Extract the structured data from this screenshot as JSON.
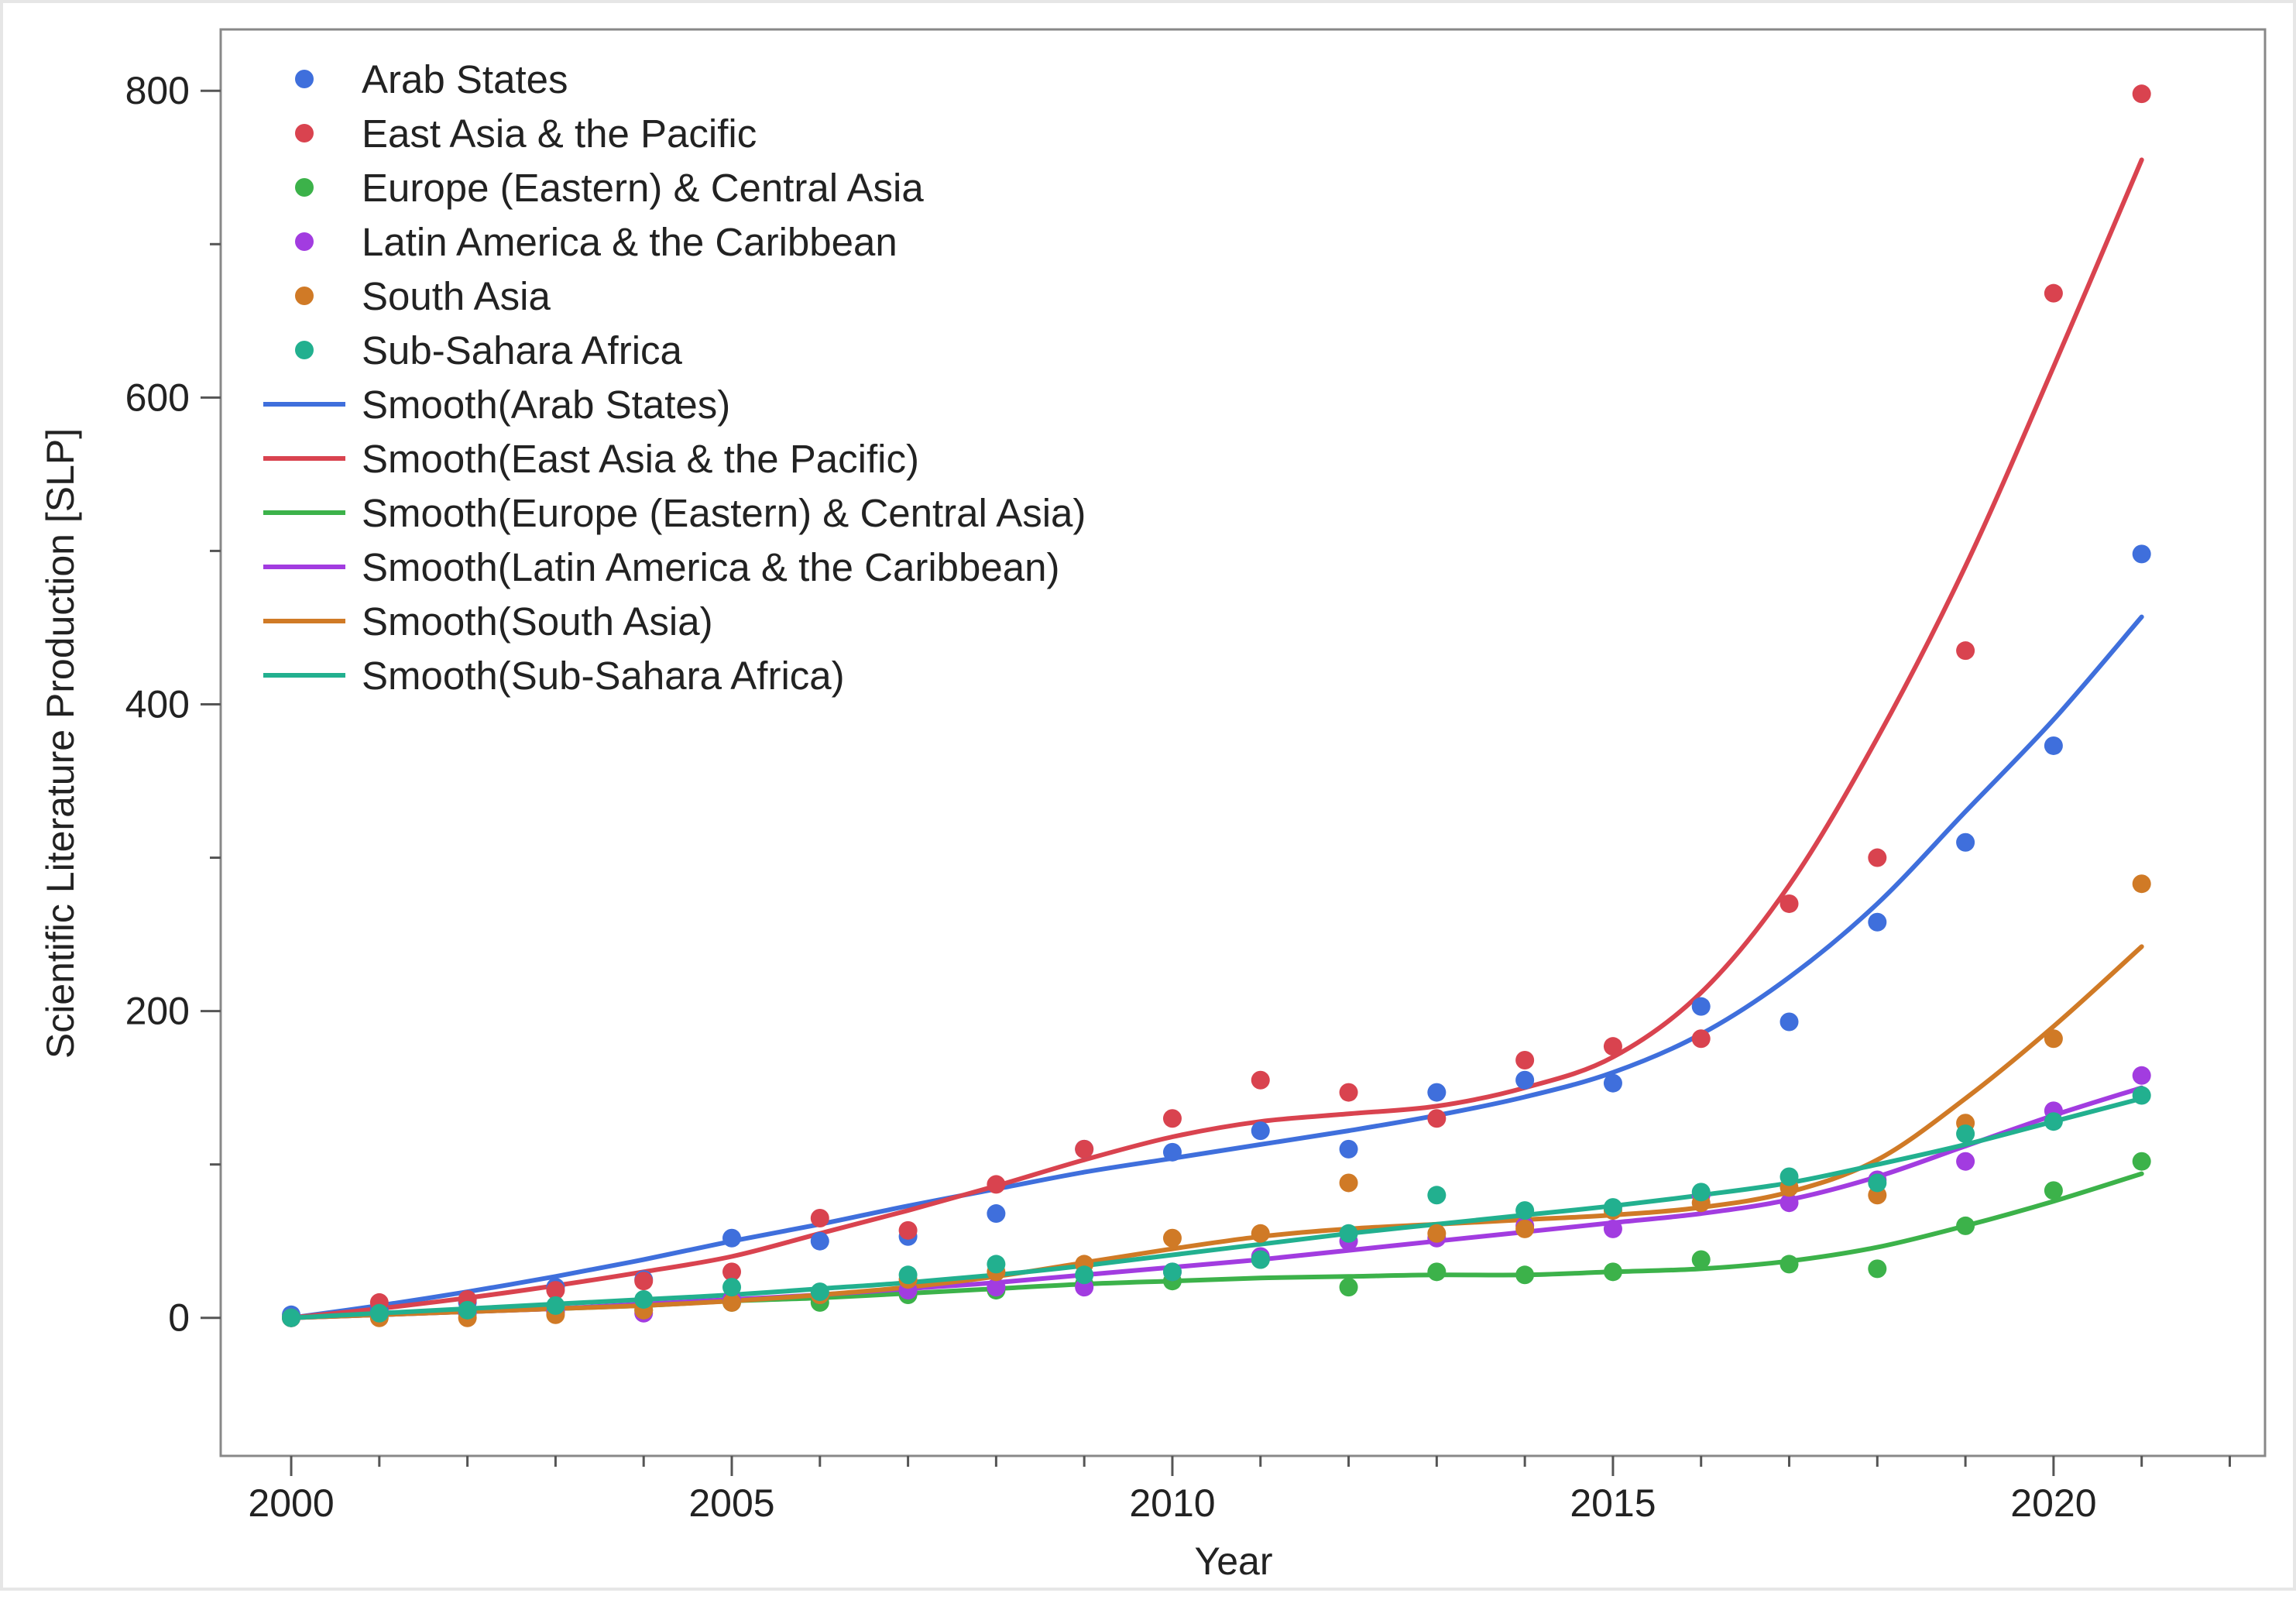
{
  "chart_data": {
    "type": "scatter",
    "title": "",
    "xlabel": "Year",
    "ylabel": "Scientific Literature Production [SLP]",
    "xlim": [
      1999.2,
      2022.4
    ],
    "ylim": [
      -90,
      840
    ],
    "x_ticks": [
      2000,
      2005,
      2010,
      2015,
      2020
    ],
    "x_minor_ticks": [
      2001,
      2002,
      2003,
      2004,
      2006,
      2007,
      2008,
      2009,
      2011,
      2012,
      2013,
      2014,
      2016,
      2017,
      2018,
      2019,
      2021,
      2022
    ],
    "y_ticks": [
      0,
      200,
      400,
      600,
      800
    ],
    "y_minor_ticks": [
      100,
      300,
      500,
      700
    ],
    "legend_position": "top-left",
    "x": [
      2000,
      2001,
      2002,
      2003,
      2004,
      2005,
      2006,
      2007,
      2008,
      2009,
      2010,
      2011,
      2012,
      2013,
      2014,
      2015,
      2016,
      2017,
      2018,
      2019,
      2020,
      2021
    ],
    "series": [
      {
        "name": "Arab States",
        "smooth_name": "Smooth(Arab States)",
        "color": "#3f6fdc",
        "values": [
          2,
          5,
          10,
          20,
          25,
          52,
          50,
          53,
          68,
          110,
          108,
          122,
          110,
          147,
          155,
          153,
          203,
          193,
          258,
          310,
          373,
          498
        ],
        "smooth": [
          0,
          8,
          17,
          27,
          38,
          50,
          61,
          73,
          84,
          95,
          104,
          113,
          122,
          132,
          144,
          160,
          185,
          222,
          270,
          330,
          390,
          457
        ]
      },
      {
        "name": "East Asia & the Pacific",
        "smooth_name": "Smooth(East Asia & the Pacific)",
        "color": "#d9434f",
        "values": [
          0,
          10,
          12,
          18,
          24,
          30,
          65,
          57,
          87,
          110,
          130,
          155,
          147,
          130,
          168,
          177,
          182,
          270,
          300,
          435,
          668,
          798
        ],
        "smooth": [
          0,
          6,
          13,
          21,
          30,
          40,
          55,
          70,
          86,
          103,
          118,
          128,
          133,
          138,
          150,
          170,
          212,
          282,
          378,
          490,
          620,
          755
        ]
      },
      {
        "name": "Europe (Eastern) & Central Asia",
        "smooth_name": "Smooth(Europe (Eastern) & Central Asia)",
        "color": "#3cb24a",
        "values": [
          0,
          2,
          3,
          4,
          5,
          10,
          10,
          15,
          18,
          22,
          24,
          38,
          20,
          30,
          28,
          30,
          38,
          35,
          32,
          60,
          83,
          102
        ],
        "smooth": [
          0,
          2,
          4,
          6,
          8,
          11,
          13,
          16,
          19,
          22,
          24,
          26,
          27,
          28,
          28,
          30,
          32,
          37,
          46,
          60,
          76,
          94
        ]
      },
      {
        "name": "Latin America & the Caribbean",
        "smooth_name": "Smooth(Latin America & the Caribbean)",
        "color": "#a23ce0",
        "values": [
          0,
          2,
          3,
          4,
          3,
          12,
          15,
          18,
          20,
          20,
          30,
          40,
          50,
          52,
          60,
          58,
          80,
          75,
          90,
          102,
          135,
          158
        ],
        "smooth": [
          0,
          2,
          4,
          6,
          9,
          12,
          15,
          19,
          23,
          28,
          33,
          38,
          44,
          50,
          56,
          62,
          68,
          77,
          92,
          112,
          132,
          150
        ]
      },
      {
        "name": "South Asia",
        "smooth_name": "Smooth(South Asia)",
        "color": "#d07a26",
        "values": [
          0,
          0,
          0,
          2,
          5,
          10,
          15,
          25,
          30,
          35,
          52,
          55,
          88,
          55,
          58,
          70,
          75,
          85,
          80,
          127,
          182,
          283
        ],
        "smooth": [
          0,
          2,
          4,
          6,
          8,
          11,
          15,
          20,
          27,
          36,
          45,
          53,
          58,
          61,
          64,
          67,
          72,
          82,
          103,
          143,
          190,
          242
        ]
      },
      {
        "name": "Sub-Sahara Africa",
        "smooth_name": "Smooth(Sub-Sahara Africa)",
        "color": "#22b08f",
        "values": [
          0,
          3,
          5,
          8,
          12,
          20,
          17,
          28,
          35,
          28,
          30,
          38,
          55,
          80,
          70,
          72,
          82,
          92,
          88,
          120,
          128,
          145
        ],
        "smooth": [
          0,
          3,
          6,
          9,
          12,
          15,
          19,
          23,
          28,
          34,
          41,
          48,
          55,
          61,
          67,
          73,
          80,
          88,
          100,
          113,
          128,
          143
        ]
      }
    ]
  }
}
